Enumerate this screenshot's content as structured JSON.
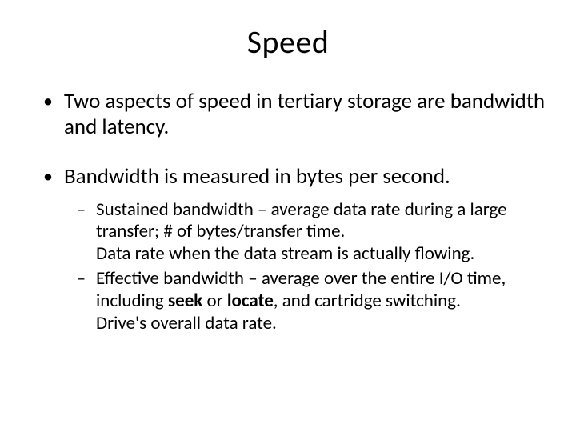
{
  "title": "Speed",
  "bullets": [
    {
      "text": "Two aspects of speed in tertiary storage are bandwidth and latency."
    },
    {
      "text": "Bandwidth is measured in bytes per second.",
      "sub": [
        {
          "prefix": "Sustained bandwidth – average data rate during a large transfer; # of bytes/transfer time.",
          "line2": "Data rate when the data stream is actually flowing."
        },
        {
          "prefix": "Effective bandwidth – average over the entire I/O time, including ",
          "bold1": "seek",
          "mid": " or ",
          "bold2": "locate",
          "suffix": ", and cartridge switching.",
          "line2": "Drive's overall data rate."
        }
      ]
    }
  ],
  "colors": {
    "background": "#ffffff",
    "text": "#000000"
  },
  "typography": {
    "title_fontsize": 40,
    "body_fontsize": 27,
    "sub_fontsize": 23,
    "font_family": "Calibri"
  }
}
